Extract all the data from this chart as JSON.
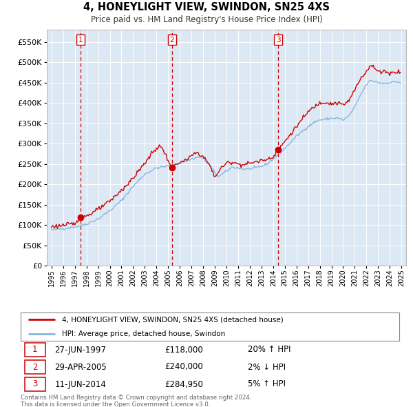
{
  "title": "4, HONEYLIGHT VIEW, SWINDON, SN25 4XS",
  "subtitle": "Price paid vs. HM Land Registry's House Price Index (HPI)",
  "legend_line1": "4, HONEYLIGHT VIEW, SWINDON, SN25 4XS (detached house)",
  "legend_line2": "HPI: Average price, detached house, Swindon",
  "footer1": "Contains HM Land Registry data © Crown copyright and database right 2024.",
  "footer2": "This data is licensed under the Open Government Licence v3.0.",
  "table": [
    {
      "num": "1",
      "date": "27-JUN-1997",
      "price": "£118,000",
      "hpi": "20% ↑ HPI"
    },
    {
      "num": "2",
      "date": "29-APR-2005",
      "price": "£240,000",
      "hpi": "2% ↓ HPI"
    },
    {
      "num": "3",
      "date": "11-JUN-2014",
      "price": "£284,950",
      "hpi": "5% ↑ HPI"
    }
  ],
  "sale_dates_num": [
    1997.49,
    2005.33,
    2014.44
  ],
  "sale_prices": [
    118000,
    240000,
    284950
  ],
  "sale_labels": [
    "1",
    "2",
    "3"
  ],
  "ylim": [
    0,
    580000
  ],
  "yticks": [
    0,
    50000,
    100000,
    150000,
    200000,
    250000,
    300000,
    350000,
    400000,
    450000,
    500000,
    550000
  ],
  "bg_color": "#dde8f5",
  "grid_color": "#ffffff",
  "red_line_color": "#cc0000",
  "blue_line_color": "#85b8dc",
  "sale_marker_color": "#cc0000",
  "dashed_line_color": "#cc0000",
  "box_color": "#cc0000",
  "xlim_left": 1994.6,
  "xlim_right": 2025.4
}
